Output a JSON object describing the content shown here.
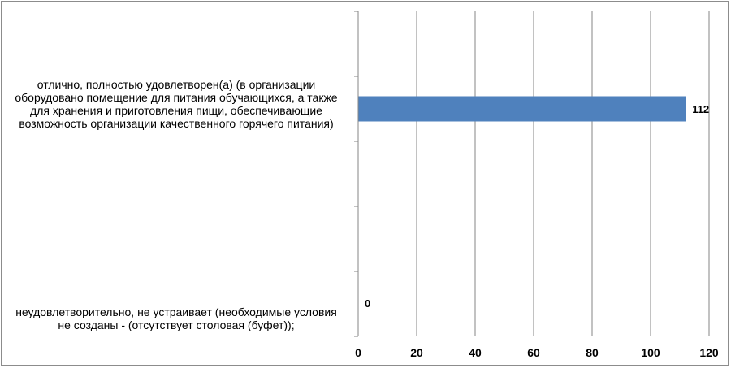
{
  "chart_data": {
    "type": "bar",
    "orientation": "horizontal",
    "title": "",
    "xlabel": "",
    "ylabel": "",
    "categories": [
      "отлично, полностью удовлетворен(а) (в организации оборудовано помещение для питания обучающихся, а также для хранения и приготовления пищи, обеспечивающие возможность организации качественного горячего питания)",
      "неудовлетворительно, не устраивает (необходимые условия не созданы - (отсутствует столовая (буфет));"
    ],
    "category_lines": [
      [
        "отлично, полностью удовлетворен(а) (в организации",
        "оборудовано помещение для питания обучающихся, а также",
        "для хранения и приготовления пищи, обеспечивающие",
        "возможность организации качественного горячего питания)"
      ],
      [
        "неудовлетворительно, не устраивает (необходимые условия",
        "не созданы - (отсутствует столовая (буфет));"
      ]
    ],
    "values": [
      112,
      0
    ],
    "data_labels": [
      "112",
      "0"
    ],
    "xlim": [
      0,
      120
    ],
    "ticks": [
      "0",
      "20",
      "40",
      "60",
      "80",
      "100",
      "120"
    ],
    "grid": true,
    "legend": "none",
    "bar_color": "#4f81bd",
    "grid_color": "#868686"
  }
}
